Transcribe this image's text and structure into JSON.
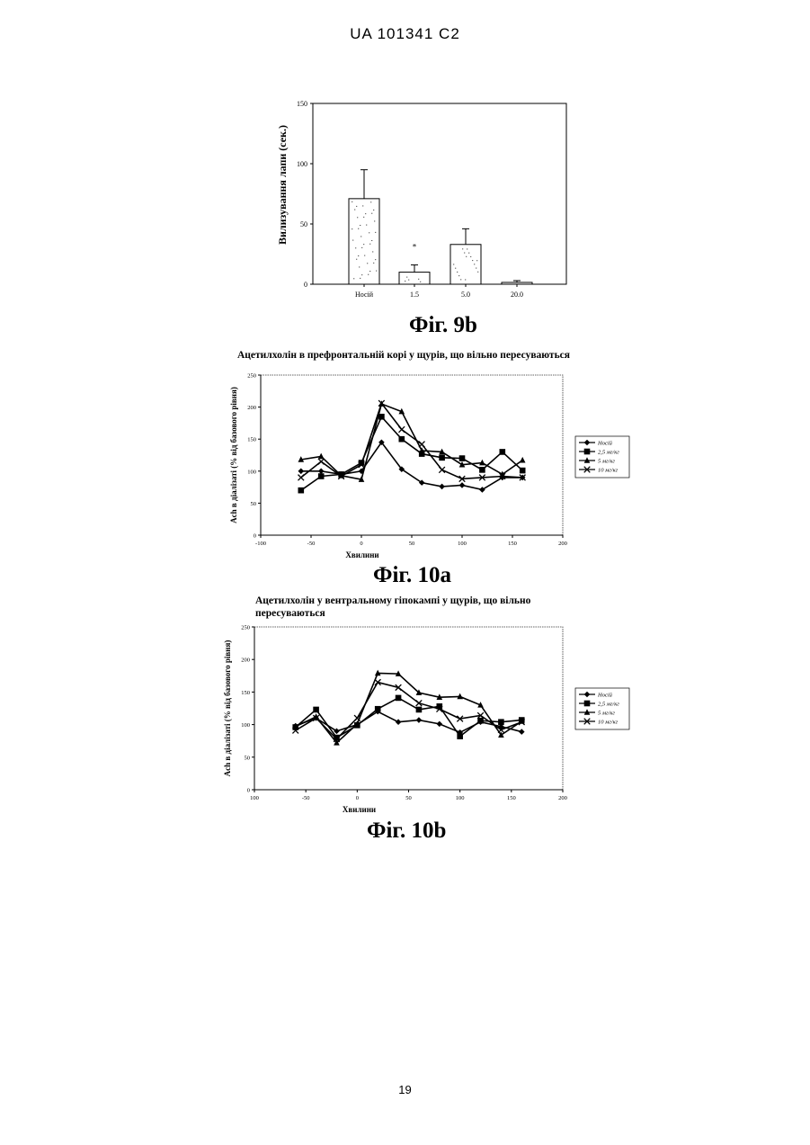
{
  "page": {
    "header": "UA   101341   C2",
    "page_number": "19"
  },
  "fig9b_caption": "Фіг. 9b",
  "fig10a_caption": "Фіг. 10a",
  "fig10b_caption": "Фіг. 10b",
  "chart_data": [
    {
      "id": "fig9b",
      "type": "bar",
      "title": "",
      "ylabel": "Вилизування лапи (сек.)",
      "xlabel": "",
      "ylim": [
        0,
        150
      ],
      "yticks": [
        0,
        50,
        100,
        150
      ],
      "ytick_labels": [
        "0",
        "50",
        "100",
        "150"
      ],
      "categories": [
        "Носій",
        "1.5",
        "5.0",
        "20.0"
      ],
      "values": [
        71,
        10,
        33,
        1.5
      ],
      "errors": [
        24,
        6,
        13,
        1.5
      ],
      "annotations": [
        {
          "category": "1.5",
          "text": "*"
        }
      ],
      "grid": false
    },
    {
      "id": "fig10a",
      "type": "line",
      "title": "Ацетилхолін в префронтальній корі у щурів, що вільно пересуваються",
      "xlabel": "Хвилини",
      "ylabel": "Ach в діалізаті (% від базового рівня)",
      "xlim": [
        -100,
        200
      ],
      "ylim": [
        0,
        250
      ],
      "xticks": [
        -100,
        -50,
        0,
        50,
        100,
        150,
        200
      ],
      "xtick_labels": [
        "-100",
        "-50",
        "0",
        "50",
        "100",
        "150",
        "200"
      ],
      "yticks": [
        0,
        50,
        100,
        150,
        200,
        250
      ],
      "ytick_labels": [
        "0",
        "50",
        "100",
        "150",
        "200",
        "250"
      ],
      "legend_position": "right",
      "grid": false,
      "x": [
        -60,
        -40,
        -20,
        0,
        20,
        40,
        60,
        80,
        100,
        120,
        140,
        160
      ],
      "series": [
        {
          "name": "Носій",
          "marker": "diamond",
          "values": [
            100,
            100,
            95,
            100,
            145,
            103,
            82,
            76,
            78,
            71,
            90,
            90
          ]
        },
        {
          "name": "2,5 мг/кг",
          "marker": "square",
          "values": [
            70,
            92,
            95,
            113,
            185,
            150,
            127,
            121,
            120,
            102,
            130,
            101
          ]
        },
        {
          "name": "5 мг/кг",
          "marker": "triangle",
          "values": [
            118,
            123,
            93,
            87,
            205,
            193,
            132,
            130,
            110,
            113,
            95,
            117
          ]
        },
        {
          "name": "10 мг/кг",
          "marker": "x",
          "values": [
            90,
            115,
            92,
            110,
            206,
            165,
            142,
            102,
            88,
            90,
            92,
            90
          ]
        }
      ]
    },
    {
      "id": "fig10b",
      "type": "line",
      "title": "Ацетилхолін у вентральному гіпокампі у щурів, що вільно пересуваються",
      "xlabel": "Хвилини",
      "ylabel": "Ach в діалізаті (% від базового рівня)",
      "xlim": [
        -100,
        200
      ],
      "ylim": [
        0,
        250
      ],
      "xticks": [
        -100,
        -50,
        0,
        50,
        100,
        150,
        200
      ],
      "xtick_labels": [
        "100",
        "-50",
        "0",
        "50",
        "100",
        "150",
        "200"
      ],
      "yticks": [
        0,
        50,
        100,
        150,
        200,
        250
      ],
      "ytick_labels": [
        "0",
        "50",
        "100",
        "150",
        "200",
        "250"
      ],
      "legend_position": "right",
      "grid": false,
      "x": [
        -60,
        -40,
        -20,
        0,
        20,
        40,
        60,
        80,
        100,
        120,
        140,
        160
      ],
      "series": [
        {
          "name": "Носій",
          "marker": "diamond",
          "values": [
            98,
            110,
            90,
            100,
            120,
            104,
            107,
            101,
            88,
            104,
            97,
            89
          ]
        },
        {
          "name": "2,5 мг/кг",
          "marker": "square",
          "values": [
            96,
            123,
            80,
            99,
            124,
            141,
            123,
            128,
            82,
            106,
            104,
            107
          ]
        },
        {
          "name": "5 мг/кг",
          "marker": "triangle",
          "values": [
            97,
            112,
            72,
            101,
            179,
            178,
            149,
            142,
            143,
            130,
            84,
            105
          ]
        },
        {
          "name": "10 мг/кг",
          "marker": "x",
          "values": [
            91,
            110,
            78,
            110,
            165,
            157,
            133,
            124,
            109,
            114,
            92,
            104
          ]
        }
      ]
    }
  ]
}
